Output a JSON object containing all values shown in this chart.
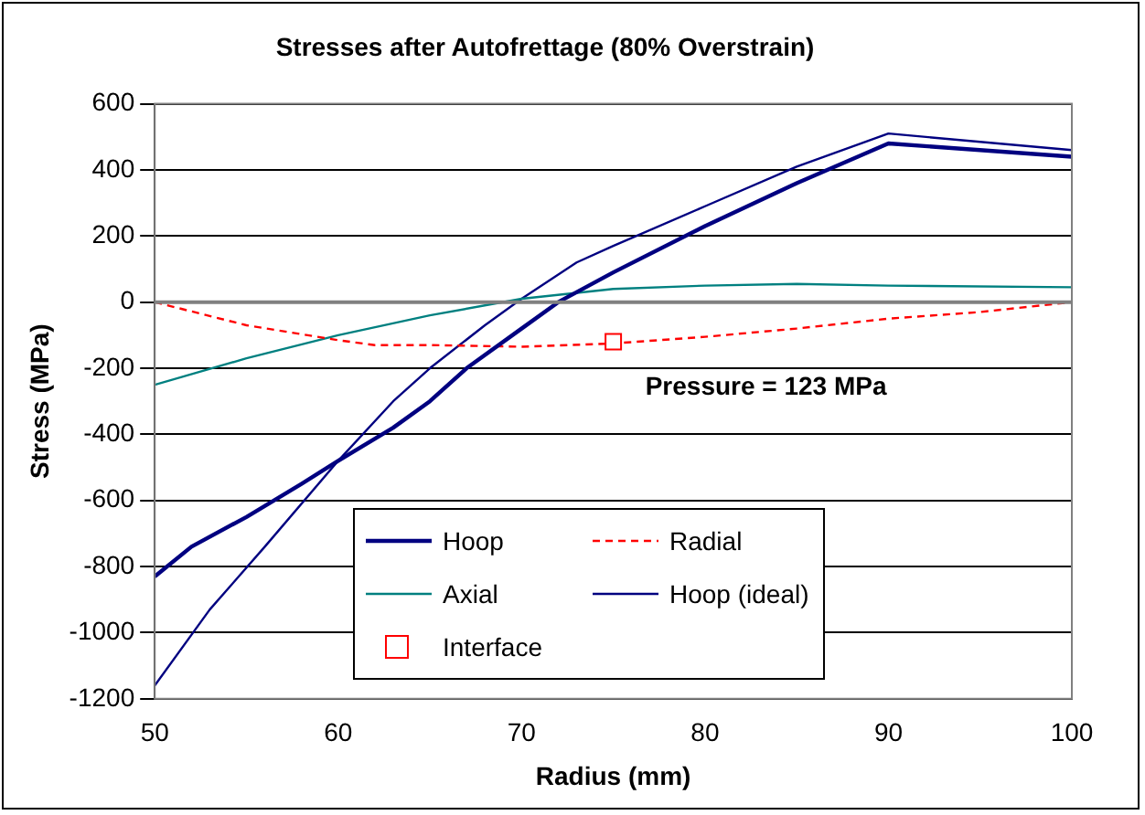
{
  "chart_data": {
    "type": "line",
    "title": "Stresses after Autofrettage (80% Overstrain)",
    "xlabel": "Radius (mm)",
    "ylabel": "Stress (MPa)",
    "xlim": [
      50,
      100
    ],
    "xticks": [
      50,
      60,
      70,
      80,
      90,
      100
    ],
    "ylim": [
      -1200,
      600
    ],
    "yticks": [
      -1200,
      -1000,
      -800,
      -600,
      -400,
      -200,
      0,
      200,
      400,
      600
    ],
    "grid": "y",
    "legend": "bottom",
    "marker": "none",
    "annotations": [
      "Pressure = 123 MPa"
    ],
    "series": [
      {
        "name": "Hoop",
        "color": "#000080",
        "line_style": "solid",
        "x": [
          50,
          52,
          55,
          58,
          60,
          63,
          65,
          67,
          70,
          72,
          75,
          80,
          85,
          90,
          100
        ],
        "values": [
          -830,
          -740,
          -650,
          -550,
          -480,
          -380,
          -300,
          -200,
          -80,
          0,
          90,
          230,
          360,
          480,
          440
        ]
      },
      {
        "name": "Radial",
        "color": "#ff0000",
        "line_style": "dashed",
        "x": [
          50,
          55,
          60,
          62,
          65,
          70,
          75,
          80,
          85,
          90,
          95,
          100
        ],
        "values": [
          0,
          -70,
          -115,
          -130,
          -130,
          -135,
          -125,
          -105,
          -80,
          -50,
          -30,
          0
        ]
      },
      {
        "name": "Axial",
        "color": "#008080",
        "line_style": "solid",
        "x": [
          50,
          55,
          60,
          65,
          70,
          75,
          80,
          85,
          90,
          100
        ],
        "values": [
          -250,
          -170,
          -100,
          -40,
          10,
          40,
          50,
          55,
          50,
          45
        ]
      },
      {
        "name": "Hoop (ideal)",
        "color": "#000080",
        "line_style": "solid",
        "x": [
          50,
          53,
          56,
          60,
          63,
          65,
          68,
          70,
          73,
          75,
          80,
          85,
          90,
          100
        ],
        "values": [
          -1160,
          -930,
          -740,
          -480,
          -300,
          -200,
          -70,
          10,
          120,
          170,
          290,
          410,
          510,
          460
        ]
      },
      {
        "name": "Interface",
        "type": "scatter",
        "color": "#ff0000",
        "marker": "square",
        "x": [
          75
        ],
        "values": [
          -120
        ]
      }
    ]
  }
}
